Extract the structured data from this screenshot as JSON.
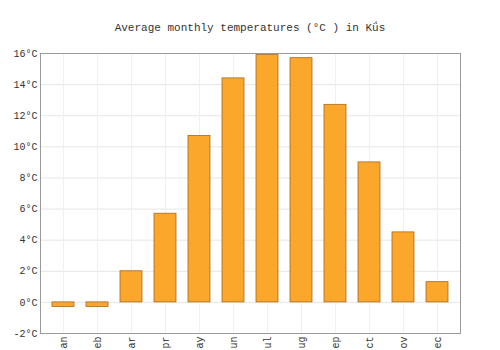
{
  "chart_data": {
    "type": "bar",
    "title": "Average monthly temperatures (°C ) in Kǘs",
    "categories": [
      "an",
      "eb",
      "ar",
      "pr",
      "ay",
      "un",
      "ul",
      "ug",
      "ep",
      "ct",
      "ov",
      "ec"
    ],
    "values": [
      -0.3,
      -0.3,
      2.0,
      5.7,
      10.7,
      14.4,
      15.9,
      15.7,
      12.7,
      9.0,
      4.5,
      1.3
    ],
    "color": "#fba72c",
    "ylim": [
      -2,
      16
    ],
    "yticks": [
      {
        "value": -2,
        "label": "-2°C"
      },
      {
        "value": 0,
        "label": "0°C"
      },
      {
        "value": 2,
        "label": "2°C"
      },
      {
        "value": 4,
        "label": "4°C"
      },
      {
        "value": 6,
        "label": "6°C"
      },
      {
        "value": 8,
        "label": "8°C"
      },
      {
        "value": 10,
        "label": "10°C"
      },
      {
        "value": 12,
        "label": "12°C"
      },
      {
        "value": 14,
        "label": "14°C"
      },
      {
        "value": 16,
        "label": "16°C"
      }
    ],
    "grid": true
  }
}
